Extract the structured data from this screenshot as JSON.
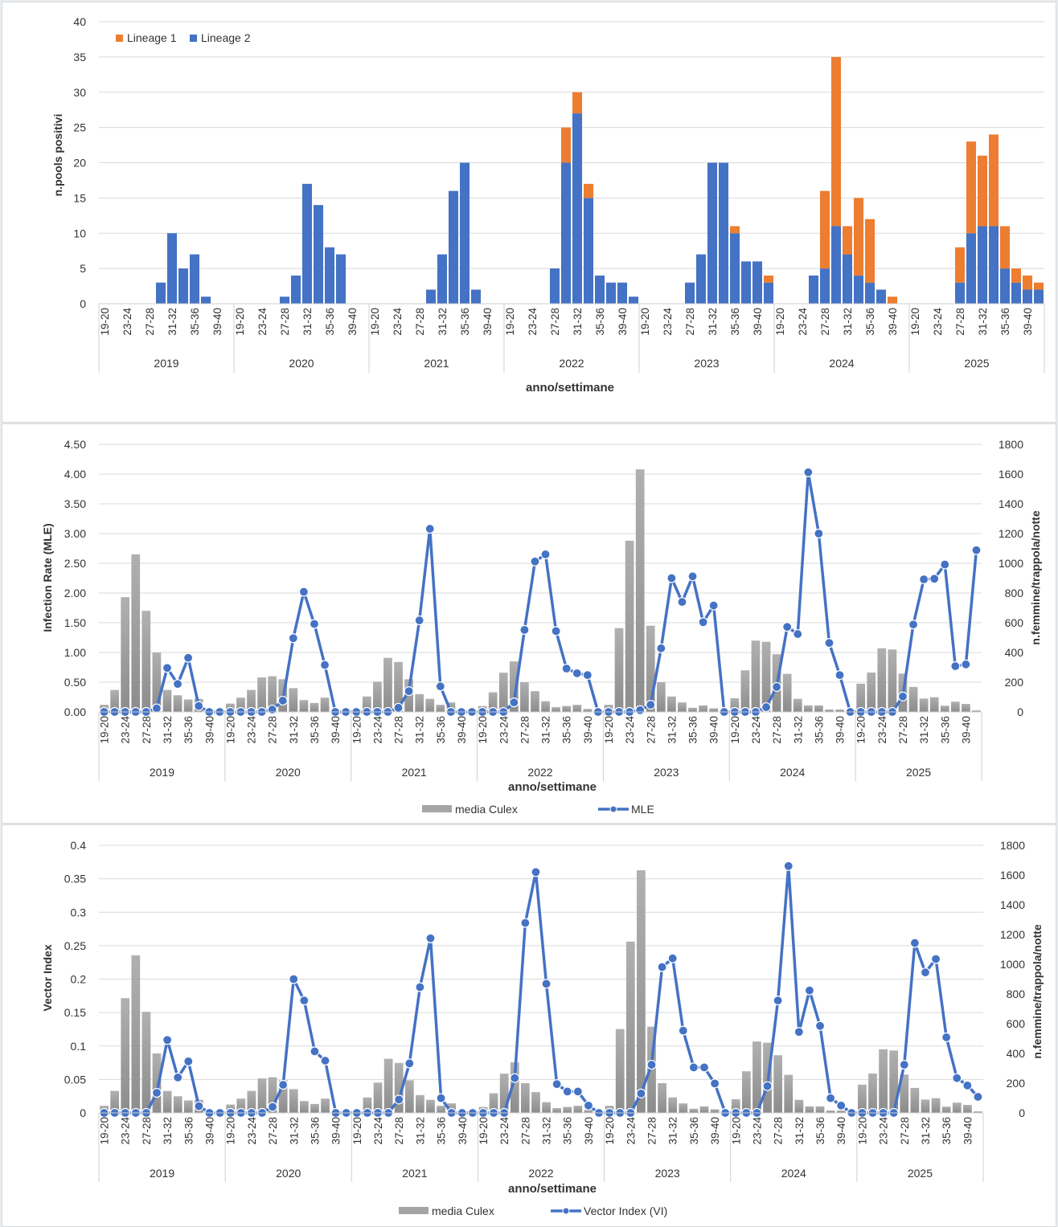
{
  "chart_data": [
    {
      "type": "bar",
      "stacked": true,
      "title": "",
      "xlabel": "anno/settimane",
      "ylabel": "n.pools positivi",
      "ylim": [
        0,
        40
      ],
      "yticks": [
        "0",
        "5",
        "10",
        "15",
        "20",
        "25",
        "30",
        "35",
        "40"
      ],
      "legend_position": "top-left",
      "years": [
        "2019",
        "2020",
        "2021",
        "2022",
        "2023",
        "2024",
        "2025"
      ],
      "weeks": [
        "19-20",
        "21-22",
        "23-24",
        "25-26",
        "27-28",
        "29-30",
        "31-32",
        "33-34",
        "35-36",
        "37-38",
        "39-40",
        "41-42"
      ],
      "tick_labels": [
        "19-20",
        "23-24",
        "27-28",
        "31-32",
        "35-36",
        "39-40"
      ],
      "series": [
        {
          "name": "Lineage 1",
          "color": "#ed7d31",
          "values": [
            [
              0,
              0,
              0,
              0,
              0,
              0,
              0,
              0,
              0,
              0,
              0,
              0
            ],
            [
              0,
              0,
              0,
              0,
              0,
              0,
              0,
              0,
              0,
              0,
              0,
              0
            ],
            [
              0,
              0,
              0,
              0,
              0,
              0,
              0,
              0,
              0,
              0,
              0,
              0
            ],
            [
              0,
              0,
              0,
              0,
              0,
              5,
              3,
              2,
              0,
              0,
              0,
              0
            ],
            [
              0,
              0,
              0,
              0,
              0,
              0,
              0,
              0,
              1,
              0,
              0,
              1
            ],
            [
              0,
              0,
              0,
              0,
              11,
              24,
              4,
              11,
              9,
              0,
              1,
              0
            ],
            [
              0,
              0,
              0,
              0,
              5,
              13,
              10,
              13,
              6,
              2,
              2,
              1
            ]
          ]
        },
        {
          "name": "Lineage 2",
          "color": "#4472c4",
          "values": [
            [
              0,
              0,
              0,
              0,
              0,
              3,
              10,
              5,
              7,
              1,
              0,
              0
            ],
            [
              0,
              0,
              0,
              0,
              1,
              4,
              17,
              14,
              8,
              7,
              0,
              0
            ],
            [
              0,
              0,
              0,
              0,
              0,
              2,
              7,
              16,
              20,
              2,
              0,
              0
            ],
            [
              0,
              0,
              0,
              0,
              5,
              20,
              27,
              15,
              4,
              3,
              3,
              1
            ],
            [
              0,
              0,
              0,
              0,
              3,
              7,
              20,
              20,
              10,
              6,
              6,
              3
            ],
            [
              0,
              0,
              0,
              4,
              5,
              11,
              7,
              4,
              3,
              2,
              0,
              0
            ],
            [
              0,
              0,
              0,
              0,
              3,
              10,
              11,
              11,
              5,
              3,
              2,
              2
            ]
          ]
        }
      ]
    },
    {
      "type": "bar+line",
      "xlabel": "anno/settimane",
      "ylabel": "Infection Rate (MLE)",
      "ylabel_right": "n.femmine/trappola/notte",
      "ylim": [
        0,
        4.5
      ],
      "ylim_right": [
        0,
        1800
      ],
      "yticks": [
        "0.00",
        "0.50",
        "1.00",
        "1.50",
        "2.00",
        "2.50",
        "3.00",
        "3.50",
        "4.00",
        "4.50"
      ],
      "yticks_right": [
        "0",
        "200",
        "400",
        "600",
        "800",
        "1000",
        "1200",
        "1400",
        "1600",
        "1800"
      ],
      "legend_position": "bottom",
      "years": [
        "2019",
        "2020",
        "2021",
        "2022",
        "2023",
        "2024",
        "2025"
      ],
      "weeks": [
        "19-20",
        "21-22",
        "23-24",
        "25-26",
        "27-28",
        "29-30",
        "31-32",
        "33-34",
        "35-36",
        "37-38",
        "39-40",
        "41-42"
      ],
      "tick_labels": [
        "19-20",
        "23-24",
        "27-28",
        "31-32",
        "35-36",
        "39-40"
      ],
      "bars": {
        "name": "media Culex",
        "axis": "right",
        "color": "#a5a5a5",
        "values": [
          [
            48,
            148,
            772,
            1060,
            680,
            400,
            148,
            112,
            84,
            88,
            8,
            0
          ],
          [
            56,
            96,
            148,
            232,
            240,
            220,
            160,
            80,
            60,
            96,
            12,
            0
          ],
          [
            20,
            104,
            204,
            364,
            336,
            220,
            120,
            88,
            48,
            64,
            8,
            0
          ],
          [
            40,
            132,
            264,
            340,
            200,
            140,
            72,
            32,
            40,
            48,
            20,
            0
          ],
          [
            48,
            564,
            1152,
            1632,
            580,
            200,
            104,
            64,
            28,
            44,
            24,
            0
          ],
          [
            92,
            280,
            480,
            472,
            388,
            256,
            88,
            44,
            44,
            16,
            16,
            0
          ],
          [
            190,
            265,
            428,
            420,
            258,
            168,
            90,
            99,
            42,
            69,
            54,
            10
          ]
        ]
      },
      "line": {
        "name": "MLE",
        "axis": "left",
        "color": "#4472c4",
        "values": [
          [
            0,
            0,
            0,
            0,
            0,
            0.06,
            0.74,
            0.47,
            0.91,
            0.1,
            0,
            0
          ],
          [
            0,
            0,
            0,
            0,
            0.04,
            0.19,
            1.24,
            2.02,
            1.48,
            0.79,
            0,
            0
          ],
          [
            0,
            0,
            0,
            0,
            0.07,
            0.35,
            1.54,
            3.08,
            0.43,
            0,
            0,
            0
          ],
          [
            0,
            0,
            0,
            0.16,
            1.38,
            2.53,
            2.65,
            1.36,
            0.73,
            0.65,
            0.62,
            0
          ],
          [
            0,
            0,
            0,
            0.03,
            0.12,
            1.07,
            2.25,
            1.85,
            2.28,
            1.51,
            1.79,
            0
          ],
          [
            0,
            0,
            0,
            0.08,
            0.42,
            1.43,
            1.31,
            4.03,
            3.0,
            1.16,
            0.62,
            0
          ],
          [
            0,
            0,
            0,
            0,
            0.26,
            1.47,
            2.23,
            2.24,
            2.48,
            0.77,
            0.8,
            2.72
          ]
        ]
      }
    },
    {
      "type": "bar+line",
      "xlabel": "anno/settimane",
      "ylabel": "Vector Index",
      "ylabel_right": "n.femmine/trappola/notte",
      "ylim": [
        0,
        0.4
      ],
      "ylim_right": [
        0,
        1800
      ],
      "yticks": [
        "0",
        "0.05",
        "0.1",
        "0.15",
        "0.2",
        "0.25",
        "0.3",
        "0.35",
        "0.4"
      ],
      "yticks_right": [
        "0",
        "200",
        "400",
        "600",
        "800",
        "1000",
        "1200",
        "1400",
        "1600",
        "1800"
      ],
      "legend_position": "bottom",
      "years": [
        "2019",
        "2020",
        "2021",
        "2022",
        "2023",
        "2024",
        "2025"
      ],
      "weeks": [
        "19-20",
        "21-22",
        "23-24",
        "25-26",
        "27-28",
        "29-30",
        "31-32",
        "33-34",
        "35-36",
        "37-38",
        "39-40",
        "41-42"
      ],
      "tick_labels": [
        "19-20",
        "23-24",
        "27-28",
        "31-32",
        "35-36",
        "39-40"
      ],
      "bars": {
        "name": "media Culex",
        "axis": "right",
        "color": "#a5a5a5",
        "values": [
          [
            48,
            148,
            772,
            1060,
            680,
            400,
            148,
            112,
            84,
            88,
            8,
            0
          ],
          [
            56,
            96,
            148,
            232,
            240,
            220,
            160,
            80,
            60,
            96,
            12,
            0
          ],
          [
            20,
            104,
            204,
            364,
            336,
            220,
            120,
            88,
            48,
            64,
            8,
            0
          ],
          [
            40,
            132,
            264,
            340,
            200,
            140,
            72,
            32,
            40,
            48,
            20,
            0
          ],
          [
            48,
            564,
            1152,
            1632,
            580,
            200,
            104,
            64,
            28,
            44,
            24,
            0
          ],
          [
            92,
            280,
            480,
            472,
            388,
            256,
            88,
            44,
            44,
            16,
            16,
            0
          ],
          [
            190,
            265,
            428,
            420,
            258,
            168,
            90,
            99,
            42,
            69,
            54,
            10
          ]
        ]
      },
      "line": {
        "name": "Vector Index (VI)",
        "axis": "left",
        "color": "#4472c4",
        "values": [
          [
            0,
            0,
            0,
            0,
            0,
            0.03,
            0.109,
            0.053,
            0.077,
            0.01,
            0,
            0
          ],
          [
            0,
            0,
            0,
            0,
            0.009,
            0.042,
            0.2,
            0.168,
            0.092,
            0.078,
            0,
            0
          ],
          [
            0,
            0,
            0,
            0,
            0.02,
            0.074,
            0.188,
            0.261,
            0.022,
            0,
            0,
            0
          ],
          [
            0,
            0,
            0,
            0.052,
            0.284,
            0.36,
            0.193,
            0.043,
            0.032,
            0.032,
            0.011,
            0
          ],
          [
            0,
            0,
            0,
            0.029,
            0.072,
            0.218,
            0.231,
            0.123,
            0.068,
            0.068,
            0.044,
            0
          ],
          [
            0,
            0,
            0,
            0.04,
            0.168,
            0.369,
            0.121,
            0.183,
            0.13,
            0.022,
            0.011,
            0
          ],
          [
            0,
            0,
            0,
            0,
            0.072,
            0.254,
            0.21,
            0.23,
            0.113,
            0.052,
            0.041,
            0.024
          ]
        ]
      }
    }
  ]
}
